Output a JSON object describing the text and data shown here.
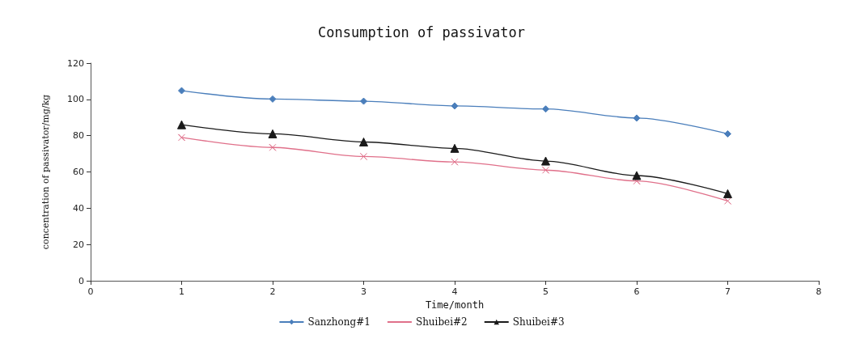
{
  "chart_data": {
    "type": "line",
    "title": "Consumption of passivator",
    "xlabel": "Time/month",
    "ylabel": "concentration of passivator/mg/kg",
    "x": [
      1,
      2,
      3,
      4,
      5,
      6,
      7
    ],
    "xlim": [
      0,
      8
    ],
    "xticks": [
      0,
      1,
      2,
      3,
      4,
      5,
      6,
      7,
      8
    ],
    "ylim": [
      0,
      120
    ],
    "yticks": [
      0,
      20,
      40,
      60,
      80,
      100,
      120
    ],
    "grid": false,
    "legend": "bottom",
    "series": [
      {
        "name": "Sanzhong#1",
        "color": "#4a7ebb",
        "marker": "diamond",
        "values": [
          104.8,
          100.2,
          99,
          96.4,
          94.7,
          89.7,
          81
        ]
      },
      {
        "name": "Shuibei#2",
        "color": "#e0708a",
        "marker": "cross",
        "values": [
          79,
          73.5,
          68.5,
          65.5,
          61,
          55,
          44
        ]
      },
      {
        "name": "Shuibei#3",
        "color": "#1a1a1a",
        "marker": "triangle",
        "values": [
          86,
          81,
          76.5,
          73,
          66,
          58,
          48
        ]
      }
    ]
  }
}
